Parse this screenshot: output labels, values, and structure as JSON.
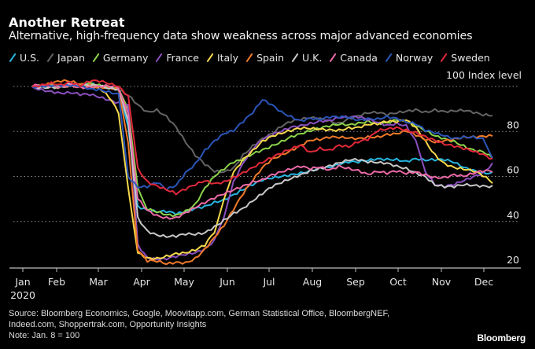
{
  "header": {
    "title": "Another Retreat",
    "subtitle": "Alternative, high-frequency data show weakness across major advanced economies"
  },
  "footer": {
    "source_line1": "Source: Bloomberg Economics, Google, Moovitapp.com, German Statistical Office, BloombergNEF,",
    "source_line2": "Indeed.com, Shoppertrak.com, Opportunity Insights",
    "note": "Note: Jan. 8 = 100",
    "brand": "Bloomberg"
  },
  "chart_data": {
    "type": "line",
    "title": "Another Retreat",
    "subtitle": "Alternative, high-frequency data show weakness across major advanced economies",
    "ylabel": "100 Index level",
    "xlabel": "",
    "ylim": [
      20,
      100
    ],
    "yticks": [
      20,
      40,
      60,
      80,
      100
    ],
    "ytick_labels": [
      "20",
      "40",
      "60",
      "80",
      "100 Index level"
    ],
    "grid": true,
    "legend_position": "top",
    "x_tick_labels": [
      "Jan",
      "Feb",
      "Mar",
      "Apr",
      "May",
      "Jun",
      "Jul",
      "Aug",
      "Sep",
      "Oct",
      "Nov",
      "Dec"
    ],
    "x_year_label": "2020",
    "x_unit": "weeks since Jan. 8, 2020",
    "x": [
      0,
      1,
      2,
      3,
      4,
      5,
      6,
      7,
      8,
      9,
      10,
      11,
      12,
      13,
      14,
      15,
      16,
      17,
      18,
      19,
      20,
      21,
      22,
      23,
      24,
      25,
      26,
      27,
      28,
      29,
      30,
      31,
      32,
      33,
      34,
      35,
      36,
      37,
      38,
      39,
      40,
      41,
      42,
      43,
      44,
      45,
      46,
      47,
      48
    ],
    "series": [
      {
        "name": "U.S.",
        "color": "#27b5e0",
        "values": [
          100,
          100,
          101,
          100,
          101,
          100,
          101,
          100,
          100,
          99,
          82,
          47,
          45,
          44,
          44,
          43,
          44,
          46,
          47,
          49,
          50,
          52,
          54,
          56,
          58,
          59,
          60,
          61,
          62,
          63,
          64,
          64,
          65,
          66,
          66,
          67,
          68,
          68,
          68,
          67,
          68,
          67,
          67,
          67,
          66,
          64,
          63,
          62,
          62
        ]
      },
      {
        "name": "Japan",
        "color": "#646464",
        "values": [
          100,
          100,
          100,
          100,
          101,
          100,
          100,
          100,
          99,
          98,
          96,
          92,
          89,
          90,
          87,
          82,
          75,
          69,
          65,
          62,
          62,
          64,
          70,
          74,
          77,
          79,
          82,
          84,
          85,
          86,
          86,
          85,
          84,
          86,
          87,
          88,
          88,
          87,
          88,
          89,
          90,
          89,
          90,
          89,
          89,
          89,
          88,
          87,
          87
        ]
      },
      {
        "name": "Germany",
        "color": "#8cd34a",
        "values": [
          100,
          100,
          100,
          100,
          100,
          101,
          102,
          101,
          100,
          99,
          90,
          55,
          45,
          44,
          43,
          43,
          45,
          48,
          55,
          60,
          63,
          66,
          67,
          70,
          72,
          74,
          76,
          78,
          79,
          80,
          81,
          82,
          83,
          83,
          84,
          85,
          84,
          84,
          85,
          84,
          82,
          80,
          78,
          77,
          76,
          74,
          72,
          71,
          68
        ]
      },
      {
        "name": "France",
        "color": "#8a4fbf",
        "values": [
          100,
          99,
          98,
          97,
          97,
          96,
          96,
          95,
          94,
          93,
          92,
          30,
          24,
          23,
          23,
          24,
          25,
          26,
          28,
          32,
          42,
          58,
          66,
          72,
          76,
          78,
          80,
          82,
          83,
          84,
          85,
          85,
          86,
          86,
          86,
          85,
          84,
          83,
          84,
          83,
          76,
          62,
          56,
          55,
          56,
          58,
          60,
          62,
          66
        ]
      },
      {
        "name": "Italy",
        "color": "#f6d84c",
        "values": [
          100,
          100,
          100,
          100,
          101,
          100,
          100,
          99,
          95,
          88,
          55,
          26,
          24,
          24,
          25,
          26,
          26,
          27,
          29,
          35,
          50,
          62,
          68,
          72,
          76,
          78,
          79,
          80,
          81,
          81,
          81,
          81,
          81,
          82,
          82,
          83,
          83,
          84,
          84,
          85,
          82,
          76,
          70,
          66,
          64,
          63,
          62,
          60,
          57
        ]
      },
      {
        "name": "Spain",
        "color": "#f07a2a",
        "values": [
          100,
          100,
          101,
          102,
          102,
          101,
          101,
          100,
          100,
          99,
          75,
          27,
          22,
          22,
          21,
          22,
          22,
          24,
          28,
          33,
          38,
          45,
          52,
          58,
          64,
          68,
          70,
          72,
          74,
          76,
          76,
          77,
          77,
          77,
          77,
          78,
          78,
          79,
          79,
          80,
          78,
          76,
          75,
          76,
          77,
          78,
          78,
          78,
          78
        ]
      },
      {
        "name": "U.K.",
        "color": "#c8c8c8",
        "values": [
          100,
          100,
          100,
          100,
          101,
          100,
          100,
          100,
          99,
          99,
          85,
          42,
          36,
          34,
          33,
          33,
          34,
          34,
          35,
          38,
          41,
          44,
          46,
          49,
          52,
          55,
          57,
          59,
          61,
          63,
          64,
          65,
          66,
          67,
          67,
          66,
          66,
          66,
          65,
          64,
          62,
          60,
          56,
          55,
          55,
          56,
          56,
          56,
          56
        ]
      },
      {
        "name": "Canada",
        "color": "#ec6aa8",
        "values": [
          100,
          100,
          100,
          100,
          101,
          100,
          100,
          100,
          100,
          99,
          88,
          50,
          45,
          43,
          42,
          42,
          44,
          46,
          48,
          50,
          52,
          54,
          56,
          58,
          59,
          61,
          62,
          63,
          64,
          63,
          64,
          63,
          65,
          64,
          63,
          61,
          62,
          61,
          62,
          61,
          62,
          61,
          60,
          60,
          61,
          60,
          61,
          62,
          62
        ]
      },
      {
        "name": "Norway",
        "color": "#2b55b8",
        "values": [
          100,
          100,
          100,
          100,
          100,
          100,
          99,
          99,
          98,
          97,
          60,
          55,
          55,
          57,
          54,
          56,
          62,
          66,
          72,
          76,
          79,
          80,
          84,
          88,
          94,
          92,
          89,
          87,
          85,
          86,
          85,
          86,
          86,
          86,
          85,
          86,
          86,
          87,
          86,
          84,
          83,
          80,
          79,
          78,
          77,
          78,
          78,
          77,
          68
        ]
      },
      {
        "name": "Sweden",
        "color": "#e0283a",
        "values": [
          100,
          101,
          102,
          101,
          102,
          100,
          102,
          102,
          101,
          100,
          96,
          64,
          58,
          56,
          54,
          52,
          54,
          56,
          58,
          57,
          58,
          60,
          62,
          64,
          66,
          68,
          70,
          72,
          74,
          71,
          73,
          72,
          74,
          73,
          75,
          76,
          80,
          81,
          82,
          81,
          80,
          78,
          76,
          74,
          73,
          72,
          71,
          70,
          68
        ]
      }
    ]
  }
}
